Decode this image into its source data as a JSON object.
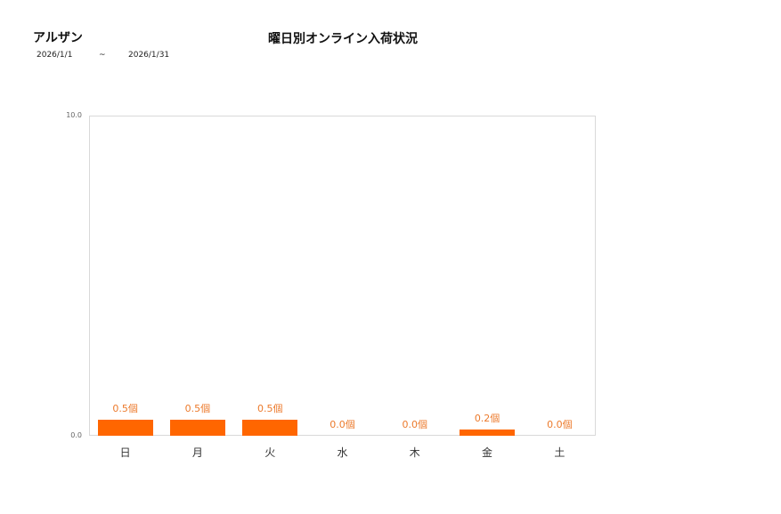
{
  "header": {
    "store_name": "アルザン",
    "date_from": "2026/1/1",
    "date_separator": "~",
    "date_to": "2026/1/31"
  },
  "chart_data": {
    "type": "bar",
    "title": "曜日別オンライン入荷状況",
    "xlabel": "",
    "ylabel": "",
    "ylim": [
      0,
      10
    ],
    "y_ticks": [
      "0.0",
      "10.0"
    ],
    "grid": false,
    "legend": null,
    "unit": "個",
    "bar_color": "#ff6600",
    "label_color": "#ec7a2c",
    "categories": [
      "日",
      "月",
      "火",
      "水",
      "木",
      "金",
      "土"
    ],
    "values": [
      0.5,
      0.5,
      0.5,
      0.0,
      0.0,
      0.2,
      0.0
    ],
    "labels": [
      "0.5個",
      "0.5個",
      "0.5個",
      "0.0個",
      "0.0個",
      "0.2個",
      "0.0個"
    ]
  }
}
